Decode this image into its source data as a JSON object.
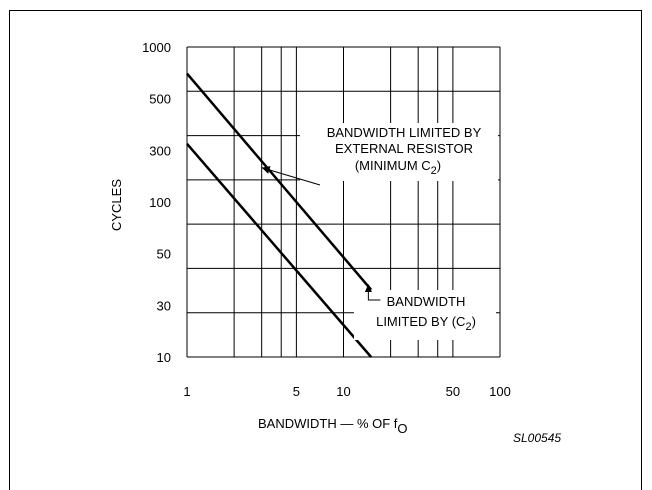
{
  "chart_data": {
    "type": "line",
    "xlabel_main": "BANDWIDTH — % OF f",
    "xlabel_sub": "O",
    "ylabel": "CYCLES",
    "figure_id": "SL00545",
    "x_scale": "log",
    "x_range": [
      1,
      100
    ],
    "x_ticks": [
      {
        "v": 1,
        "label": "1"
      },
      {
        "v": 5,
        "label": "5"
      },
      {
        "v": 10,
        "label": "10"
      },
      {
        "v": 50,
        "label": "50"
      },
      {
        "v": 100,
        "label": "100"
      }
    ],
    "x_gridlines": [
      1,
      2,
      3,
      4,
      5,
      10,
      20,
      30,
      40,
      50,
      100
    ],
    "y_ticks": [
      "10",
      "30",
      "50",
      "100",
      "300",
      "500",
      "1000"
    ],
    "y_gridline_count": 8,
    "series": [
      {
        "id": "external_resistor",
        "x": [
          1,
          15
        ],
        "y": [
          700,
          35
        ]
      },
      {
        "id": "c2_limited",
        "x": [
          1,
          15
        ],
        "y": [
          320,
          10
        ]
      }
    ],
    "annotations": {
      "upper": {
        "lines": [
          "BANDWIDTH LIMITED BY",
          "EXTERNAL RESISTOR",
          "(MINIMUM C",
          "2",
          ")"
        ],
        "points_to": {
          "x": 3,
          "series": "external_resistor"
        }
      },
      "lower": {
        "lines": [
          "BANDWIDTH",
          "LIMITED BY (C",
          "2",
          ")"
        ],
        "points_to": {
          "x": 14,
          "series": "external_resistor"
        }
      }
    },
    "grid": true,
    "legend": "none"
  }
}
